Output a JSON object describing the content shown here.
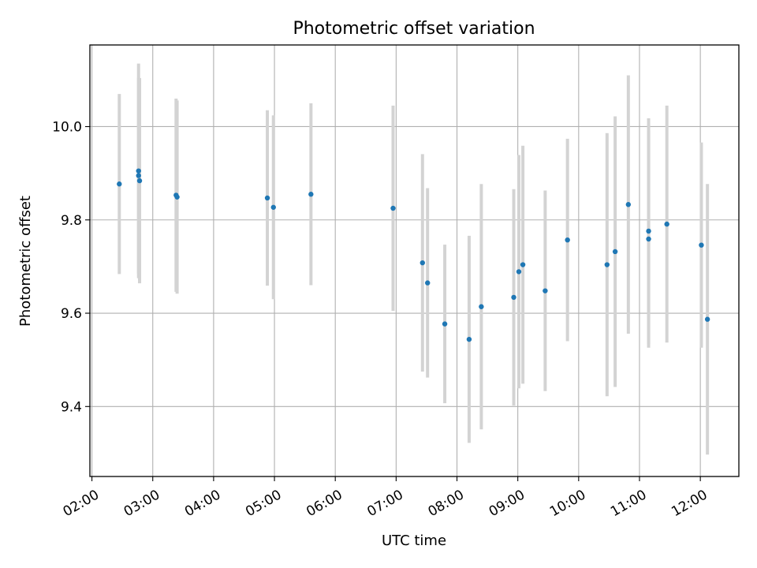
{
  "chart_data": {
    "type": "scatter",
    "title": "Photometric offset variation",
    "xlabel": "UTC time",
    "ylabel": "Photometric offset",
    "xlim": [
      "01:58",
      "12:38"
    ],
    "ylim": [
      9.25,
      10.175
    ],
    "xticks": [
      "02:00",
      "03:00",
      "04:00",
      "05:00",
      "06:00",
      "07:00",
      "08:00",
      "09:00",
      "10:00",
      "11:00",
      "12:00"
    ],
    "yticks": [
      "9.4",
      "9.6",
      "9.8",
      "10.0"
    ],
    "grid": true,
    "legend": "none",
    "colors": {
      "point": "#1f77b4",
      "errorbar": "#d3d3d3",
      "grid": "#b0b0b0"
    },
    "points": [
      {
        "x": "02:27",
        "y": 9.877,
        "yerr": 0.193
      },
      {
        "x": "02:46",
        "y": 9.905,
        "yerr": 0.23
      },
      {
        "x": "02:46",
        "y": 9.895,
        "yerr": 0.21
      },
      {
        "x": "02:47",
        "y": 9.884,
        "yerr": 0.22
      },
      {
        "x": "03:23",
        "y": 9.853,
        "yerr": 0.207
      },
      {
        "x": "03:24",
        "y": 9.849,
        "yerr": 0.207
      },
      {
        "x": "04:53",
        "y": 9.847,
        "yerr": 0.188
      },
      {
        "x": "04:59",
        "y": 9.827,
        "yerr": 0.197
      },
      {
        "x": "05:36",
        "y": 9.855,
        "yerr": 0.195
      },
      {
        "x": "06:57",
        "y": 9.825,
        "yerr": 0.22
      },
      {
        "x": "07:26",
        "y": 9.708,
        "yerr": 0.233
      },
      {
        "x": "07:31",
        "y": 9.665,
        "yerr": 0.203
      },
      {
        "x": "07:48",
        "y": 9.577,
        "yerr": 0.17
      },
      {
        "x": "08:12",
        "y": 9.544,
        "yerr": 0.222
      },
      {
        "x": "08:24",
        "y": 9.614,
        "yerr": 0.263
      },
      {
        "x": "08:56",
        "y": 9.634,
        "yerr": 0.232
      },
      {
        "x": "09:01",
        "y": 9.689,
        "yerr": 0.25
      },
      {
        "x": "09:05",
        "y": 9.704,
        "yerr": 0.255
      },
      {
        "x": "09:27",
        "y": 9.648,
        "yerr": 0.215
      },
      {
        "x": "09:49",
        "y": 9.757,
        "yerr": 0.217
      },
      {
        "x": "10:28",
        "y": 9.704,
        "yerr": 0.282
      },
      {
        "x": "10:36",
        "y": 9.732,
        "yerr": 0.29
      },
      {
        "x": "10:49",
        "y": 9.833,
        "yerr": 0.277
      },
      {
        "x": "11:09",
        "y": 9.776,
        "yerr": 0.242
      },
      {
        "x": "11:09",
        "y": 9.759,
        "yerr": 0.233
      },
      {
        "x": "11:27",
        "y": 9.791,
        "yerr": 0.254
      },
      {
        "x": "12:01",
        "y": 9.746,
        "yerr": 0.22
      },
      {
        "x": "12:07",
        "y": 9.587,
        "yerr": 0.29
      }
    ]
  }
}
